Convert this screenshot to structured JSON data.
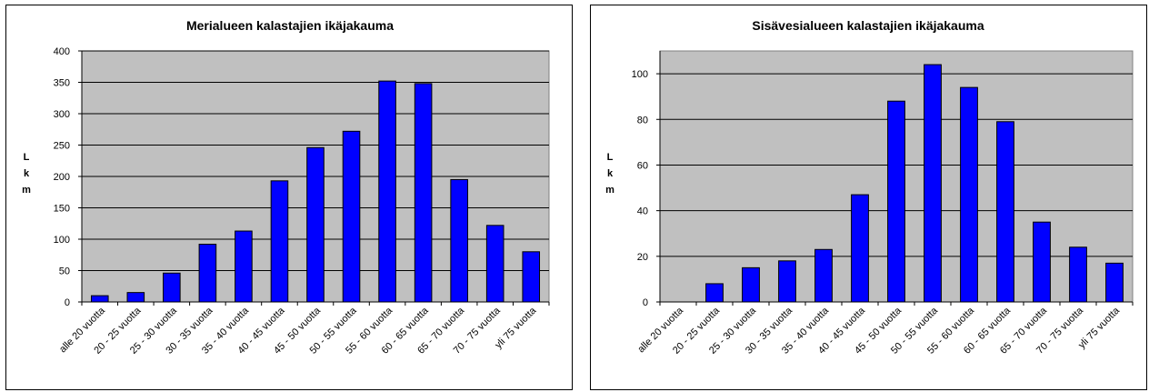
{
  "chart_data": [
    {
      "type": "bar",
      "title": "Merialueen kalastajien ikäjakauma",
      "ylabel": "Lkm",
      "xlabel": "",
      "categories": [
        "alle 20 vuotta",
        "20 - 25 vuotta",
        "25 - 30 vuotta",
        "30 - 35 vuotta",
        "35 - 40 vuotta",
        "40 - 45 vuotta",
        "45 - 50 vuotta",
        "50 - 55 vuotta",
        "55 - 60 vuotta",
        "60 - 65 vuotta",
        "65 - 70 vuotta",
        "70 - 75 vuotta",
        "yli 75 vuotta"
      ],
      "values": [
        10,
        15,
        46,
        92,
        113,
        193,
        246,
        272,
        352,
        348,
        195,
        122,
        80
      ],
      "ylim": [
        0,
        400
      ],
      "yticks": [
        0,
        50,
        100,
        150,
        200,
        250,
        300,
        350,
        400
      ],
      "grid": true,
      "legend": "none",
      "bar_color": "#0000FF",
      "plot_background": "#C0C0C0"
    },
    {
      "type": "bar",
      "title": "Sisävesialueen kalastajien ikäjakauma",
      "ylabel": "Lkm",
      "xlabel": "",
      "categories": [
        "alle 20 vuotta",
        "20 - 25 vuotta",
        "25 - 30 vuotta",
        "30 - 35 vuotta",
        "35 - 40 vuotta",
        "40 - 45 vuotta",
        "45 - 50 vuotta",
        "50 - 55 vuotta",
        "55 - 60 vuotta",
        "60 - 65 vuotta",
        "65 - 70 vuotta",
        "70 - 75 vuotta",
        "yli 75 vuotta"
      ],
      "values": [
        0,
        8,
        15,
        18,
        23,
        47,
        88,
        104,
        94,
        79,
        35,
        24,
        17
      ],
      "ylim": [
        0,
        110
      ],
      "yticks": [
        0,
        20,
        40,
        60,
        80,
        100
      ],
      "grid": true,
      "legend": "none",
      "bar_color": "#0000FF",
      "plot_background": "#C0C0C0"
    }
  ]
}
